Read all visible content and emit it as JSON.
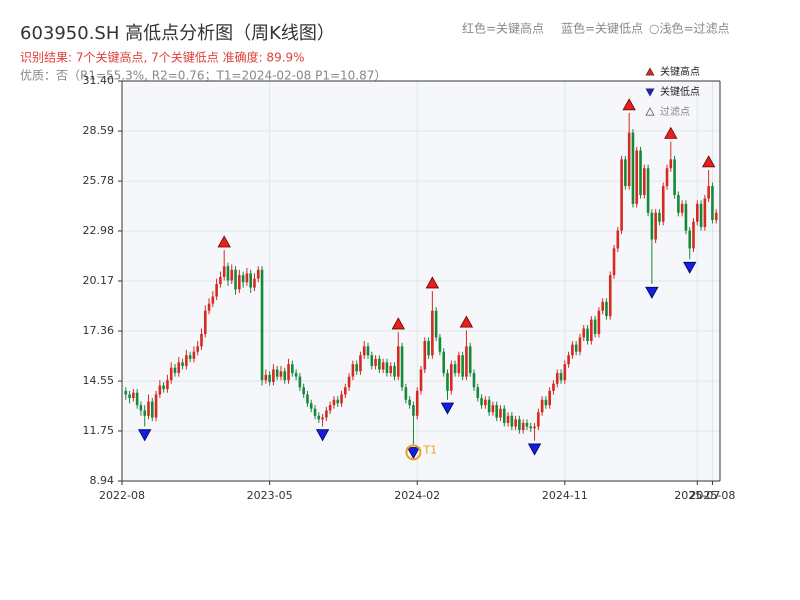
{
  "chart_data": {
    "type": "candlestick",
    "title": "603950.SH 高低点分析图（周K线图）",
    "subtitle": "识别结果: 7个关键高点, 7个关键低点  准确度: 89.9%",
    "note": "优质：否（R1=55.3%, R2=0.76；T1=2024-02-08 P1=10.87）",
    "header_legend": [
      "红色=关键高点",
      "蓝色=关键低点",
      "○浅色=过滤点"
    ],
    "up_color": "#d42a1f",
    "down_color": "#16883a",
    "grid": true,
    "xlim": [
      -1,
      157
    ],
    "xticks": [
      {
        "value": -1,
        "label": "2022-08"
      },
      {
        "value": 38,
        "label": "2023-05"
      },
      {
        "value": 77,
        "label": "2024-02"
      },
      {
        "value": 116,
        "label": "2024-11"
      },
      {
        "value": 151,
        "label": "2025-07"
      },
      {
        "value": 155,
        "label": "2025-08"
      }
    ],
    "ylim": [
      8.94,
      31.4
    ],
    "yticks": [
      8.94,
      11.75,
      14.55,
      17.36,
      20.17,
      22.98,
      25.78,
      28.59,
      {
        "value": 31.4,
        "label": "31.40"
      }
    ],
    "candles": [
      [
        14.0,
        14.2,
        13.5,
        13.8
      ],
      [
        13.8,
        14.0,
        13.3,
        13.6
      ],
      [
        13.6,
        14.1,
        13.4,
        13.9
      ],
      [
        13.9,
        14.1,
        13.0,
        13.2
      ],
      [
        13.2,
        13.4,
        12.6,
        12.9
      ],
      [
        12.9,
        13.2,
        12.0,
        12.6
      ],
      [
        12.6,
        13.8,
        12.4,
        13.4
      ],
      [
        13.4,
        13.6,
        12.3,
        12.5
      ],
      [
        12.5,
        14.0,
        12.3,
        13.8
      ],
      [
        13.8,
        14.6,
        13.6,
        14.3
      ],
      [
        14.3,
        14.5,
        13.9,
        14.1
      ],
      [
        14.1,
        14.9,
        13.9,
        14.6
      ],
      [
        14.6,
        15.6,
        14.4,
        15.3
      ],
      [
        15.3,
        15.5,
        14.8,
        15.0
      ],
      [
        15.0,
        15.9,
        14.8,
        15.6
      ],
      [
        15.6,
        15.8,
        15.2,
        15.4
      ],
      [
        15.4,
        16.3,
        15.2,
        16.0
      ],
      [
        16.0,
        16.2,
        15.6,
        15.8
      ],
      [
        15.8,
        16.5,
        15.6,
        16.2
      ],
      [
        16.2,
        16.8,
        16.0,
        16.5
      ],
      [
        16.5,
        17.5,
        16.3,
        17.2
      ],
      [
        17.2,
        18.8,
        17.0,
        18.5
      ],
      [
        18.5,
        19.2,
        18.3,
        18.9
      ],
      [
        18.9,
        19.6,
        18.7,
        19.3
      ],
      [
        19.3,
        20.3,
        19.1,
        20.0
      ],
      [
        20.0,
        20.7,
        19.8,
        20.4
      ],
      [
        20.4,
        21.9,
        20.2,
        21.0
      ],
      [
        21.0,
        21.2,
        19.9,
        20.2
      ],
      [
        20.2,
        21.1,
        20.0,
        20.8
      ],
      [
        20.8,
        21.0,
        19.4,
        19.7
      ],
      [
        19.7,
        20.8,
        19.5,
        20.5
      ],
      [
        20.5,
        20.7,
        19.8,
        20.1
      ],
      [
        20.1,
        20.9,
        19.9,
        20.6
      ],
      [
        20.6,
        20.8,
        19.5,
        19.8
      ],
      [
        19.8,
        20.6,
        19.6,
        20.3
      ],
      [
        20.3,
        21.0,
        20.1,
        20.8
      ],
      [
        20.8,
        21.0,
        14.3,
        14.6
      ],
      [
        14.6,
        15.2,
        14.4,
        14.9
      ],
      [
        14.9,
        15.1,
        14.3,
        14.5
      ],
      [
        14.5,
        15.5,
        14.3,
        15.2
      ],
      [
        15.2,
        15.4,
        14.6,
        14.8
      ],
      [
        14.8,
        15.4,
        14.6,
        15.1
      ],
      [
        15.1,
        15.3,
        14.4,
        14.6
      ],
      [
        14.6,
        15.8,
        14.4,
        15.5
      ],
      [
        15.5,
        15.7,
        14.8,
        15.0
      ],
      [
        15.0,
        15.2,
        14.6,
        14.8
      ],
      [
        14.8,
        15.0,
        14.0,
        14.2
      ],
      [
        14.2,
        14.4,
        13.6,
        13.8
      ],
      [
        13.8,
        14.0,
        13.1,
        13.3
      ],
      [
        13.3,
        13.5,
        12.8,
        13.0
      ],
      [
        13.0,
        13.2,
        12.4,
        12.6
      ],
      [
        12.6,
        12.8,
        12.2,
        12.4
      ],
      [
        12.4,
        12.7,
        12.0,
        12.5
      ],
      [
        12.5,
        13.1,
        12.3,
        12.9
      ],
      [
        12.9,
        13.4,
        12.7,
        13.2
      ],
      [
        13.2,
        13.7,
        13.0,
        13.5
      ],
      [
        13.5,
        13.7,
        13.1,
        13.3
      ],
      [
        13.3,
        14.0,
        13.1,
        13.8
      ],
      [
        13.8,
        14.4,
        13.6,
        14.2
      ],
      [
        14.2,
        15.0,
        14.0,
        14.8
      ],
      [
        14.8,
        15.7,
        14.6,
        15.5
      ],
      [
        15.5,
        15.7,
        14.9,
        15.1
      ],
      [
        15.1,
        16.2,
        14.9,
        16.0
      ],
      [
        16.0,
        16.8,
        15.8,
        16.5
      ],
      [
        16.5,
        16.7,
        15.8,
        16.0
      ],
      [
        16.0,
        16.2,
        15.2,
        15.4
      ],
      [
        15.4,
        16.0,
        15.2,
        15.8
      ],
      [
        15.8,
        16.0,
        15.0,
        15.2
      ],
      [
        15.2,
        15.8,
        15.0,
        15.6
      ],
      [
        15.6,
        15.8,
        14.8,
        15.0
      ],
      [
        15.0,
        15.6,
        14.8,
        15.4
      ],
      [
        15.4,
        15.6,
        14.6,
        14.8
      ],
      [
        14.8,
        17.3,
        14.6,
        16.5
      ],
      [
        16.5,
        16.7,
        14.0,
        14.2
      ],
      [
        14.2,
        14.4,
        13.3,
        13.5
      ],
      [
        13.5,
        13.7,
        13.0,
        13.2
      ],
      [
        13.2,
        13.4,
        11.0,
        12.6
      ],
      [
        12.6,
        14.2,
        12.4,
        14.0
      ],
      [
        14.0,
        15.4,
        13.8,
        15.2
      ],
      [
        15.2,
        17.0,
        15.0,
        16.8
      ],
      [
        16.8,
        17.0,
        15.8,
        16.0
      ],
      [
        16.0,
        19.6,
        15.8,
        18.5
      ],
      [
        18.5,
        18.7,
        16.8,
        17.0
      ],
      [
        17.0,
        17.2,
        16.0,
        16.2
      ],
      [
        16.2,
        16.4,
        14.8,
        15.0
      ],
      [
        15.0,
        15.2,
        13.5,
        14.0
      ],
      [
        14.0,
        15.7,
        13.8,
        15.5
      ],
      [
        15.5,
        15.7,
        14.8,
        15.0
      ],
      [
        15.0,
        16.2,
        14.8,
        16.0
      ],
      [
        16.0,
        16.2,
        14.6,
        14.8
      ],
      [
        14.8,
        17.4,
        14.6,
        16.5
      ],
      [
        16.5,
        16.7,
        14.8,
        15.0
      ],
      [
        15.0,
        15.2,
        14.0,
        14.2
      ],
      [
        14.2,
        14.4,
        13.4,
        13.6
      ],
      [
        13.6,
        13.8,
        13.0,
        13.2
      ],
      [
        13.2,
        13.7,
        13.0,
        13.5
      ],
      [
        13.5,
        13.7,
        12.6,
        12.8
      ],
      [
        12.8,
        13.4,
        12.6,
        13.2
      ],
      [
        13.2,
        13.4,
        12.3,
        12.5
      ],
      [
        12.5,
        13.2,
        12.3,
        13.0
      ],
      [
        13.0,
        13.2,
        12.0,
        12.2
      ],
      [
        12.2,
        12.8,
        12.0,
        12.6
      ],
      [
        12.6,
        12.8,
        11.8,
        12.0
      ],
      [
        12.0,
        12.6,
        11.8,
        12.4
      ],
      [
        12.4,
        12.6,
        11.6,
        11.8
      ],
      [
        11.8,
        12.4,
        11.6,
        12.2
      ],
      [
        12.2,
        12.4,
        11.8,
        12.0
      ],
      [
        12.0,
        12.2,
        11.7,
        11.9
      ],
      [
        11.9,
        12.2,
        11.2,
        12.0
      ],
      [
        12.0,
        13.0,
        11.8,
        12.8
      ],
      [
        12.8,
        13.7,
        12.6,
        13.5
      ],
      [
        13.5,
        13.7,
        13.0,
        13.2
      ],
      [
        13.2,
        14.2,
        13.0,
        14.0
      ],
      [
        14.0,
        14.6,
        13.8,
        14.4
      ],
      [
        14.4,
        15.2,
        14.2,
        15.0
      ],
      [
        15.0,
        15.2,
        14.4,
        14.6
      ],
      [
        14.6,
        15.7,
        14.4,
        15.5
      ],
      [
        15.5,
        16.2,
        15.3,
        16.0
      ],
      [
        16.0,
        16.8,
        15.8,
        16.6
      ],
      [
        16.6,
        16.8,
        16.0,
        16.2
      ],
      [
        16.2,
        17.2,
        16.0,
        17.0
      ],
      [
        17.0,
        17.7,
        16.8,
        17.5
      ],
      [
        17.5,
        17.7,
        16.6,
        16.8
      ],
      [
        16.8,
        18.2,
        16.6,
        18.0
      ],
      [
        18.0,
        18.2,
        17.0,
        17.2
      ],
      [
        17.2,
        18.7,
        17.0,
        18.5
      ],
      [
        18.5,
        19.2,
        18.3,
        19.0
      ],
      [
        19.0,
        19.2,
        18.0,
        18.2
      ],
      [
        18.2,
        20.7,
        18.0,
        20.5
      ],
      [
        20.5,
        22.2,
        20.3,
        22.0
      ],
      [
        22.0,
        23.2,
        21.8,
        23.0
      ],
      [
        23.0,
        27.2,
        22.8,
        27.0
      ],
      [
        27.0,
        27.2,
        25.3,
        25.5
      ],
      [
        25.5,
        29.6,
        25.3,
        28.5
      ],
      [
        28.5,
        28.7,
        24.3,
        24.5
      ],
      [
        24.5,
        27.7,
        24.3,
        27.5
      ],
      [
        27.5,
        27.7,
        24.8,
        25.0
      ],
      [
        25.0,
        26.7,
        24.8,
        26.5
      ],
      [
        26.5,
        26.7,
        23.8,
        24.0
      ],
      [
        24.0,
        24.2,
        20.0,
        22.5
      ],
      [
        22.5,
        24.2,
        22.3,
        24.0
      ],
      [
        24.0,
        24.2,
        23.3,
        23.5
      ],
      [
        23.5,
        25.7,
        23.3,
        25.5
      ],
      [
        25.5,
        26.7,
        25.3,
        26.5
      ],
      [
        26.5,
        28.0,
        26.3,
        27.0
      ],
      [
        27.0,
        27.2,
        24.8,
        25.0
      ],
      [
        25.0,
        25.2,
        23.8,
        24.0
      ],
      [
        24.0,
        24.7,
        23.8,
        24.5
      ],
      [
        24.5,
        24.7,
        22.8,
        23.0
      ],
      [
        23.0,
        23.2,
        21.4,
        22.0
      ],
      [
        22.0,
        23.7,
        21.8,
        23.5
      ],
      [
        23.5,
        24.7,
        23.3,
        24.5
      ],
      [
        24.5,
        24.7,
        23.0,
        23.2
      ],
      [
        23.2,
        25.0,
        23.0,
        24.8
      ],
      [
        24.8,
        26.4,
        24.6,
        25.5
      ],
      [
        25.5,
        25.7,
        23.4,
        23.6
      ],
      [
        23.6,
        24.2,
        23.4,
        24.0
      ]
    ],
    "key_highs": {
      "name": "关键高点",
      "color": "#e8201c",
      "points": [
        {
          "x": 26,
          "y": 21.9
        },
        {
          "x": 72,
          "y": 17.3
        },
        {
          "x": 81,
          "y": 19.6
        },
        {
          "x": 90,
          "y": 17.4
        },
        {
          "x": 133,
          "y": 29.6
        },
        {
          "x": 144,
          "y": 28.0
        },
        {
          "x": 154,
          "y": 26.4
        }
      ]
    },
    "key_lows": {
      "name": "关键低点",
      "color": "#1420d8",
      "points": [
        {
          "x": 5,
          "y": 12.0
        },
        {
          "x": 52,
          "y": 12.0
        },
        {
          "x": 76,
          "y": 11.0
        },
        {
          "x": 85,
          "y": 13.5
        },
        {
          "x": 108,
          "y": 11.2
        },
        {
          "x": 139,
          "y": 20.0
        },
        {
          "x": 149,
          "y": 21.4
        }
      ]
    },
    "filtered": {
      "name": "过滤点",
      "color": "#f4f4f4",
      "points": []
    },
    "annotation": {
      "label": "T1",
      "x": 76,
      "y": 11.0,
      "color": "#f0a020"
    }
  }
}
